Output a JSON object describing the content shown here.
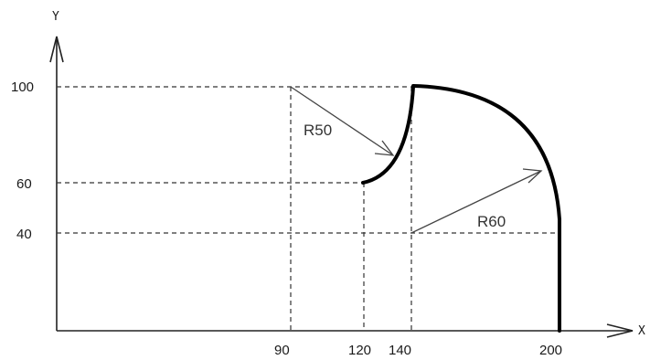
{
  "axes": {
    "x_label": "X",
    "y_label": "Y",
    "x_ticks": [
      "90",
      "120",
      "140",
      "200"
    ],
    "y_ticks": [
      "100",
      "60",
      "40"
    ]
  },
  "radii": {
    "r50": "R50",
    "r60": "R60"
  },
  "colors": {
    "profile": "#000000",
    "dashed": "#333333",
    "arrow": "#444444"
  }
}
